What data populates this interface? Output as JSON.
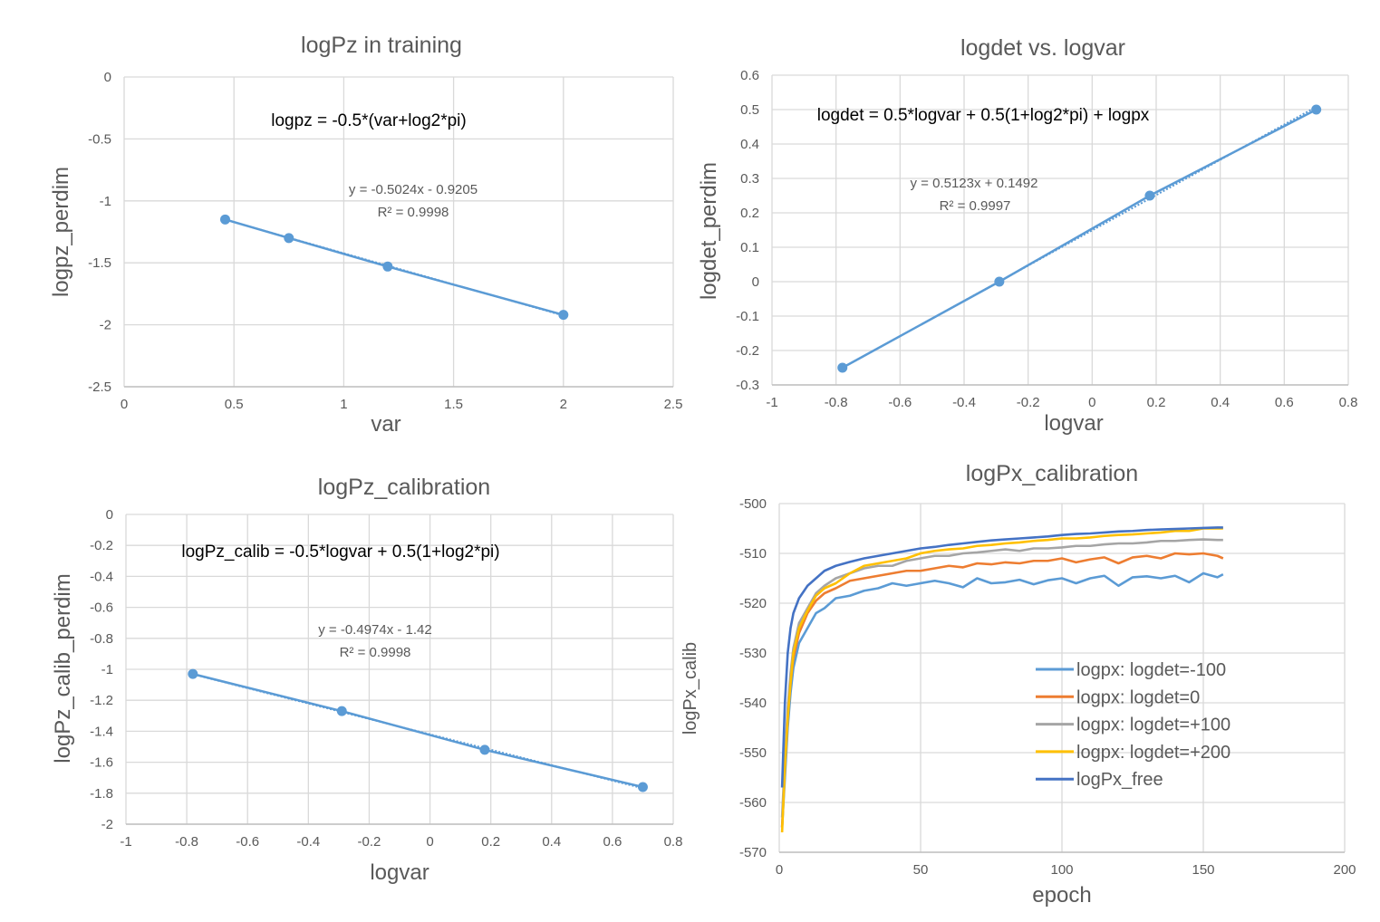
{
  "chart_data": [
    {
      "type": "scatter",
      "title": "logPz   in training",
      "xlabel": "var",
      "ylabel": "logpz_perdim",
      "xlim": [
        0,
        2.5
      ],
      "ylim": [
        -2.5,
        0
      ],
      "xticks": [
        "0",
        "0.5",
        "1",
        "1.5",
        "2",
        "2.5"
      ],
      "yticks": [
        "0",
        "-0.5",
        "-1",
        "-1.5",
        "-2",
        "-2.5"
      ],
      "xtick_values": [
        0,
        0.5,
        1,
        1.5,
        2,
        2.5
      ],
      "ytick_values": [
        0,
        -0.5,
        -1,
        -1.5,
        -2,
        -2.5
      ],
      "grid": true,
      "color": "#5B9BD5",
      "x": [
        0.46,
        0.75,
        1.2,
        2.0
      ],
      "y": [
        -1.15,
        -1.3,
        -1.53,
        -1.92
      ],
      "trendline": {
        "slope": -0.5024,
        "intercept": -0.9205
      },
      "annotations": [
        "logpz = -0.5*(var+log2*pi)",
        "y = -0.5024x - 0.9205",
        "R² = 0.9998"
      ]
    },
    {
      "type": "scatter",
      "title": "logdet vs. logvar",
      "xlabel": "logvar",
      "ylabel": "logdet_perdim",
      "xlim": [
        -1,
        0.8
      ],
      "ylim": [
        -0.3,
        0.6
      ],
      "xticks": [
        "-1",
        "-0.8",
        "-0.6",
        "-0.4",
        "-0.2",
        "0",
        "0.2",
        "0.4",
        "0.6",
        "0.8"
      ],
      "yticks": [
        "0.6",
        "0.5",
        "0.4",
        "0.3",
        "0.2",
        "0.1",
        "0",
        "-0.1",
        "-0.2",
        "-0.3"
      ],
      "xtick_values": [
        -1,
        -0.8,
        -0.6,
        -0.4,
        -0.2,
        0,
        0.2,
        0.4,
        0.6,
        0.8
      ],
      "ytick_values": [
        0.6,
        0.5,
        0.4,
        0.3,
        0.2,
        0.1,
        0,
        -0.1,
        -0.2,
        -0.3
      ],
      "grid": true,
      "color": "#5B9BD5",
      "x": [
        -0.78,
        -0.29,
        0.18,
        0.7
      ],
      "y": [
        -0.25,
        0.0,
        0.25,
        0.5
      ],
      "trendline": {
        "slope": 0.5123,
        "intercept": 0.1492
      },
      "annotations": [
        "logdet = 0.5*logvar + 0.5(1+log2*pi) + logpx",
        "y = 0.5123x + 0.1492",
        "R² = 0.9997"
      ]
    },
    {
      "type": "scatter",
      "title": "logPz_calibration",
      "xlabel": "logvar",
      "ylabel": "logPz_calib_perdim",
      "xlim": [
        -1,
        0.8
      ],
      "ylim": [
        -2,
        0
      ],
      "xticks": [
        "-1",
        "-0.8",
        "-0.6",
        "-0.4",
        "-0.2",
        "0",
        "0.2",
        "0.4",
        "0.6",
        "0.8"
      ],
      "yticks": [
        "0",
        "-0.2",
        "-0.4",
        "-0.6",
        "-0.8",
        "-1",
        "-1.2",
        "-1.4",
        "-1.6",
        "-1.8",
        "-2"
      ],
      "xtick_values": [
        -1,
        -0.8,
        -0.6,
        -0.4,
        -0.2,
        0,
        0.2,
        0.4,
        0.6,
        0.8
      ],
      "ytick_values": [
        0,
        -0.2,
        -0.4,
        -0.6,
        -0.8,
        -1,
        -1.2,
        -1.4,
        -1.6,
        -1.8,
        -2
      ],
      "grid": true,
      "color": "#5B9BD5",
      "x": [
        -0.78,
        -0.29,
        0.18,
        0.7
      ],
      "y": [
        -1.03,
        -1.27,
        -1.52,
        -1.76
      ],
      "trendline": {
        "slope": -0.4974,
        "intercept": -1.42
      },
      "annotations": [
        "logPz_calib = -0.5*logvar + 0.5(1+log2*pi)",
        "y = -0.4974x - 1.42",
        "R² = 0.9998"
      ]
    },
    {
      "type": "line",
      "title": "logPx_calibration",
      "xlabel": "epoch",
      "ylabel": "logPx_calib",
      "xlim": [
        0,
        200
      ],
      "ylim": [
        -570,
        -500
      ],
      "xticks": [
        "0",
        "50",
        "100",
        "150",
        "200"
      ],
      "yticks": [
        "-500",
        "-510",
        "-520",
        "-530",
        "-540",
        "-550",
        "-560",
        "-570"
      ],
      "xtick_values": [
        0,
        50,
        100,
        150,
        200
      ],
      "ytick_values": [
        -500,
        -510,
        -520,
        -530,
        -540,
        -550,
        -560,
        -570
      ],
      "grid": true,
      "legend_position": "center-right",
      "x": [
        1,
        2,
        3,
        4,
        5,
        7,
        10,
        13,
        16,
        20,
        25,
        30,
        35,
        40,
        45,
        50,
        55,
        60,
        65,
        70,
        75,
        80,
        85,
        90,
        95,
        100,
        105,
        110,
        115,
        120,
        125,
        130,
        135,
        140,
        145,
        150,
        155,
        157
      ],
      "series": [
        {
          "name": "logpx: logdet=-100",
          "color": "#5B9BD5",
          "values": [
            -565,
            -555,
            -545,
            -538,
            -533,
            -528,
            -525,
            -522,
            -521,
            -519,
            -518.5,
            -517.5,
            -517,
            -516,
            -516.5,
            -516,
            -515.5,
            -516,
            -516.8,
            -515,
            -516,
            -515.8,
            -515.3,
            -516.2,
            -515.4,
            -515,
            -516,
            -515,
            -514.5,
            -516.5,
            -514.8,
            -514.6,
            -515,
            -514.5,
            -515.8,
            -514,
            -514.8,
            -514.2
          ]
        },
        {
          "name": "logpx: logdet=0",
          "color": "#ED7D31",
          "values": [
            -565,
            -553,
            -543,
            -536,
            -531,
            -526,
            -522,
            -519.5,
            -518,
            -517,
            -515.5,
            -515,
            -514.5,
            -514,
            -513.5,
            -513.5,
            -513,
            -512.5,
            -512.8,
            -512,
            -512.2,
            -511.8,
            -512,
            -511.5,
            -511.5,
            -511,
            -511.8,
            -511.2,
            -510.8,
            -512,
            -510.8,
            -510.5,
            -511,
            -510,
            -510.2,
            -510,
            -510.5,
            -511
          ]
        },
        {
          "name": "logpx: logdet=+100",
          "color": "#A5A5A5",
          "values": [
            -563,
            -551,
            -541,
            -534,
            -529,
            -524,
            -521,
            -518,
            -516.5,
            -515,
            -514,
            -513,
            -512.5,
            -512.5,
            -511.5,
            -511,
            -510.5,
            -510.5,
            -510,
            -509.8,
            -509.5,
            -509.2,
            -509.5,
            -509,
            -509,
            -508.8,
            -508.5,
            -508.5,
            -508.2,
            -508,
            -508,
            -507.8,
            -507.5,
            -507.5,
            -507.3,
            -507.2,
            -507.3,
            -507.3
          ]
        },
        {
          "name": "logpx: logdet=+200",
          "color": "#FFC000",
          "values": [
            -566,
            -553,
            -543,
            -536,
            -530,
            -525,
            -521.5,
            -518.5,
            -517,
            -516,
            -514,
            -512.5,
            -512,
            -511.5,
            -511,
            -510,
            -509.5,
            -509.2,
            -509,
            -508.5,
            -508.3,
            -508,
            -507.8,
            -507.5,
            -507.3,
            -507,
            -507,
            -506.8,
            -506.5,
            -506.3,
            -506.2,
            -506,
            -505.8,
            -505.5,
            -505.5,
            -505,
            -505,
            -505
          ]
        },
        {
          "name": "logPx_free",
          "color": "#4472C4",
          "values": [
            -557,
            -540,
            -530,
            -525,
            -522,
            -519,
            -516.5,
            -515,
            -513.5,
            -512.5,
            -511.7,
            -511,
            -510.5,
            -510,
            -509.5,
            -509,
            -508.7,
            -508.3,
            -508,
            -507.7,
            -507.4,
            -507.2,
            -507,
            -506.8,
            -506.6,
            -506.3,
            -506.1,
            -506,
            -505.8,
            -505.6,
            -505.5,
            -505.3,
            -505.2,
            -505.1,
            -505,
            -504.9,
            -504.8,
            -504.8
          ]
        }
      ]
    }
  ]
}
